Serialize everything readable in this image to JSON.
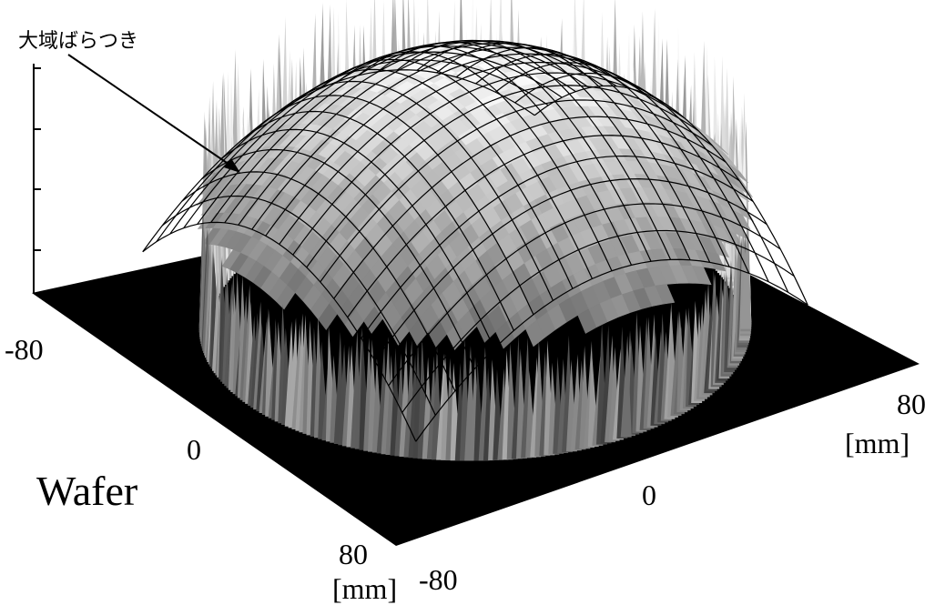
{
  "annotation": "大域ばらつき",
  "wafer_label": "Wafer",
  "axis_left": {
    "ticks": [
      "-80",
      "0",
      "80"
    ],
    "unit": "[mm]"
  },
  "axis_right": {
    "ticks": [
      "-80",
      "0",
      "80"
    ],
    "unit": "[mm]"
  }
}
